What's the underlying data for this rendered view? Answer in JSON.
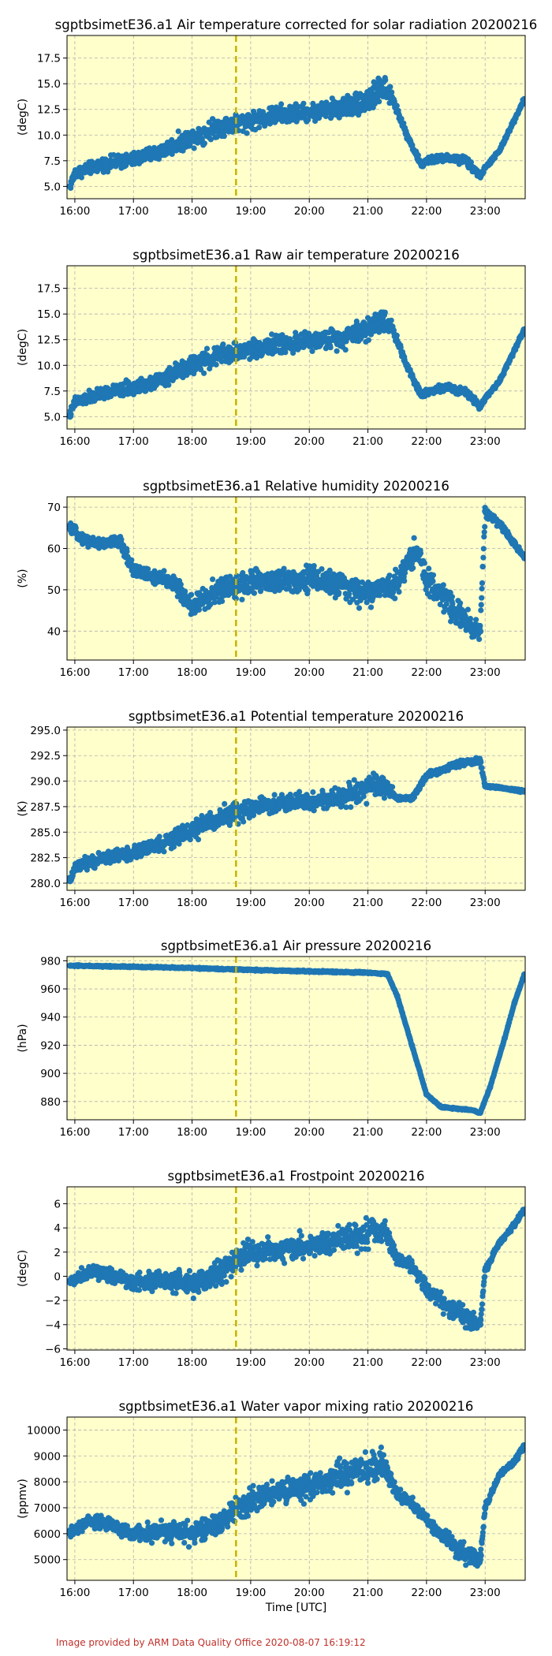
{
  "footer": "Image provided by ARM Data Quality Office 2020-08-07 16:19:12",
  "colors": {
    "series": "#1f77b4",
    "background": "#ffffcc",
    "marker_line": "#c8b400",
    "grid": "#b0b0b0"
  },
  "chart_data": [
    {
      "type": "scatter",
      "title": "sgptbsimetE36.a1 Air temperature corrected for solar radiation 20200216",
      "ylabel": "(degC)",
      "xlabel": "",
      "xlim": [
        "15:52",
        "23:41"
      ],
      "ylim": [
        3.8,
        19.7
      ],
      "xticks": [
        "16:00",
        "17:00",
        "18:00",
        "19:00",
        "20:00",
        "21:00",
        "22:00",
        "23:00"
      ],
      "yticks": [
        "5.0",
        "7.5",
        "10.0",
        "12.5",
        "15.0",
        "17.5"
      ],
      "marker_time": "18:45",
      "grid": true,
      "x": [
        "15:55",
        "16:00",
        "16:30",
        "17:00",
        "17:30",
        "18:00",
        "18:30",
        "19:00",
        "19:30",
        "20:00",
        "20:30",
        "21:00",
        "21:15",
        "21:25",
        "21:40",
        "21:55",
        "22:00",
        "22:20",
        "22:40",
        "22:55",
        "23:00",
        "23:15",
        "23:30",
        "23:40"
      ],
      "y": [
        5.0,
        6.3,
        7.2,
        7.6,
        8.5,
        9.8,
        10.9,
        11.4,
        12.0,
        12.2,
        12.6,
        13.4,
        14.5,
        13.6,
        10.0,
        7.0,
        7.5,
        7.8,
        7.5,
        6.0,
        6.8,
        8.5,
        11.5,
        13.5
      ],
      "spread": [
        0.6,
        0.8,
        0.9,
        1.0,
        1.1,
        1.3,
        1.4,
        1.3,
        1.3,
        1.2,
        1.4,
        1.8,
        2.0,
        0.8,
        0.5,
        0.4,
        0.5,
        0.5,
        0.7,
        0.4,
        0.3,
        0.3,
        0.3,
        0.3
      ]
    },
    {
      "type": "scatter",
      "title": "sgptbsimetE36.a1 Raw air temperature 20200216",
      "ylabel": "(degC)",
      "xlabel": "",
      "xlim": [
        "15:52",
        "23:41"
      ],
      "ylim": [
        3.8,
        19.7
      ],
      "xticks": [
        "16:00",
        "17:00",
        "18:00",
        "19:00",
        "20:00",
        "21:00",
        "22:00",
        "23:00"
      ],
      "yticks": [
        "5.0",
        "7.5",
        "10.0",
        "12.5",
        "15.0",
        "17.5"
      ],
      "marker_time": "18:45",
      "grid": true,
      "x": [
        "15:55",
        "16:00",
        "16:30",
        "17:00",
        "17:30",
        "18:00",
        "18:30",
        "19:00",
        "19:30",
        "20:00",
        "20:30",
        "21:00",
        "21:15",
        "21:25",
        "21:40",
        "21:55",
        "22:00",
        "22:20",
        "22:40",
        "22:55",
        "23:00",
        "23:15",
        "23:30",
        "23:40"
      ],
      "y": [
        5.2,
        6.4,
        7.3,
        7.8,
        8.7,
        10.0,
        11.0,
        11.6,
        12.1,
        12.3,
        12.7,
        13.6,
        14.6,
        13.6,
        10.0,
        7.0,
        7.5,
        7.8,
        7.5,
        6.0,
        6.8,
        8.5,
        11.5,
        13.5
      ],
      "spread": [
        0.6,
        0.8,
        0.9,
        1.0,
        1.1,
        1.3,
        1.4,
        1.3,
        1.3,
        1.2,
        1.4,
        1.8,
        2.0,
        0.8,
        0.5,
        0.4,
        0.5,
        0.5,
        0.7,
        0.4,
        0.3,
        0.3,
        0.3,
        0.3
      ]
    },
    {
      "type": "scatter",
      "title": "sgptbsimetE36.a1 Relative humidity 20200216",
      "ylabel": "(%)",
      "xlabel": "",
      "xlim": [
        "15:52",
        "23:41"
      ],
      "ylim": [
        33.0,
        72.5
      ],
      "xticks": [
        "16:00",
        "17:00",
        "18:00",
        "19:00",
        "20:00",
        "21:00",
        "22:00",
        "23:00"
      ],
      "yticks": [
        "40",
        "50",
        "60",
        "70"
      ],
      "marker_time": "18:45",
      "grid": true,
      "x": [
        "15:55",
        "16:10",
        "16:30",
        "16:45",
        "17:00",
        "17:20",
        "17:40",
        "18:00",
        "18:30",
        "19:00",
        "19:30",
        "20:00",
        "20:30",
        "21:00",
        "21:30",
        "21:50",
        "22:00",
        "22:20",
        "22:40",
        "22:55",
        "23:00",
        "23:15",
        "23:30",
        "23:40"
      ],
      "y": [
        65,
        62,
        61,
        62,
        55,
        53,
        52,
        46,
        50,
        52,
        52,
        53,
        51,
        49,
        52,
        60,
        52,
        48,
        42,
        40,
        69,
        66,
        61,
        58
      ],
      "spread": [
        1.5,
        2.0,
        2.0,
        2.0,
        2.5,
        2.5,
        3.0,
        4.0,
        4.5,
        4.5,
        4.5,
        4.5,
        4.5,
        4.5,
        4.0,
        5.0,
        4.0,
        5.0,
        5.0,
        4.0,
        2.0,
        1.5,
        1.0,
        1.0
      ]
    },
    {
      "type": "scatter",
      "title": "sgptbsimetE36.a1 Potential temperature 20200216",
      "ylabel": "(K)",
      "xlabel": "",
      "xlim": [
        "15:52",
        "23:41"
      ],
      "ylim": [
        279.3,
        295.3
      ],
      "xticks": [
        "16:00",
        "17:00",
        "18:00",
        "19:00",
        "20:00",
        "21:00",
        "22:00",
        "23:00"
      ],
      "yticks": [
        "280.0",
        "282.5",
        "285.0",
        "287.5",
        "290.0",
        "292.5",
        "295.0"
      ],
      "marker_time": "18:45",
      "grid": true,
      "x": [
        "15:55",
        "16:00",
        "16:30",
        "17:00",
        "17:30",
        "18:00",
        "18:30",
        "19:00",
        "19:30",
        "20:00",
        "20:30",
        "21:00",
        "21:15",
        "21:30",
        "21:45",
        "22:00",
        "22:20",
        "22:40",
        "22:55",
        "23:00",
        "23:20",
        "23:40"
      ],
      "y": [
        280.2,
        281.5,
        282.5,
        283.0,
        283.8,
        285.2,
        286.5,
        287.3,
        287.8,
        288.0,
        288.4,
        289.2,
        289.8,
        288.3,
        288.3,
        290.5,
        291.3,
        291.8,
        292.0,
        289.5,
        289.3,
        289.0
      ],
      "spread": [
        0.6,
        0.8,
        0.9,
        1.0,
        1.1,
        1.3,
        1.4,
        1.3,
        1.3,
        1.2,
        1.4,
        1.8,
        2.0,
        0.3,
        0.3,
        0.5,
        0.4,
        0.5,
        0.4,
        0.2,
        0.2,
        0.2
      ]
    },
    {
      "type": "scatter",
      "title": "sgptbsimetE36.a1 Air pressure 20200216",
      "ylabel": "(hPa)",
      "xlabel": "",
      "xlim": [
        "15:52",
        "23:41"
      ],
      "ylim": [
        867.0,
        983.0
      ],
      "xticks": [
        "16:00",
        "17:00",
        "18:00",
        "19:00",
        "20:00",
        "21:00",
        "22:00",
        "23:00"
      ],
      "yticks": [
        "880",
        "900",
        "920",
        "940",
        "960",
        "980"
      ],
      "marker_time": "18:45",
      "grid": true,
      "x": [
        "15:55",
        "17:00",
        "18:00",
        "19:00",
        "20:00",
        "21:00",
        "21:20",
        "21:30",
        "21:45",
        "22:00",
        "22:15",
        "22:30",
        "22:45",
        "22:55",
        "23:05",
        "23:20",
        "23:30",
        "23:40"
      ],
      "y": [
        976.5,
        975.8,
        974.8,
        973.5,
        972.5,
        971.5,
        970.5,
        955.0,
        920.0,
        885.0,
        876.0,
        875.0,
        874.0,
        872.0,
        890.0,
        925.0,
        950.0,
        970.0
      ],
      "spread": [
        0.8,
        0.8,
        0.8,
        0.8,
        0.8,
        0.8,
        0.8,
        0.8,
        0.8,
        0.8,
        0.8,
        0.8,
        0.8,
        0.8,
        0.8,
        0.8,
        0.8,
        0.8
      ]
    },
    {
      "type": "scatter",
      "title": "sgptbsimetE36.a1 Frostpoint 20200216",
      "ylabel": "(degC)",
      "xlabel": "",
      "xlim": [
        "15:52",
        "23:41"
      ],
      "ylim": [
        -6.1,
        7.4
      ],
      "xticks": [
        "16:00",
        "17:00",
        "18:00",
        "19:00",
        "20:00",
        "21:00",
        "22:00",
        "23:00"
      ],
      "yticks": [
        "−6",
        "−4",
        "−2",
        "0",
        "2",
        "4",
        "6"
      ],
      "marker_time": "18:45",
      "grid": true,
      "x": [
        "15:55",
        "16:15",
        "16:30",
        "17:00",
        "17:30",
        "18:00",
        "18:30",
        "19:00",
        "19:30",
        "20:00",
        "20:30",
        "21:00",
        "21:15",
        "21:30",
        "21:45",
        "22:00",
        "22:20",
        "22:40",
        "22:55",
        "23:00",
        "23:15",
        "23:30",
        "23:40"
      ],
      "y": [
        -0.5,
        0.5,
        0.3,
        -0.5,
        -0.3,
        -0.8,
        0.5,
        2.0,
        2.2,
        2.5,
        3.0,
        3.5,
        4.0,
        1.5,
        0.8,
        -1.0,
        -2.5,
        -3.5,
        -4.0,
        0.5,
        2.8,
        4.3,
        5.5
      ],
      "spread": [
        0.7,
        0.8,
        0.9,
        1.0,
        1.1,
        1.4,
        1.6,
        1.5,
        1.4,
        1.4,
        1.6,
        1.8,
        1.8,
        0.8,
        0.7,
        0.9,
        1.1,
        1.3,
        0.8,
        0.4,
        0.3,
        0.3,
        0.3
      ]
    },
    {
      "type": "scatter",
      "title": "sgptbsimetE36.a1 Water vapor mixing ratio 20200216",
      "ylabel": "(ppmv)",
      "xlabel": "Time [UTC]",
      "xlim": [
        "15:52",
        "23:41"
      ],
      "ylim": [
        4200,
        10500
      ],
      "xticks": [
        "16:00",
        "17:00",
        "18:00",
        "19:00",
        "20:00",
        "21:00",
        "22:00",
        "23:00"
      ],
      "yticks": [
        "5000",
        "6000",
        "7000",
        "8000",
        "9000",
        "10000"
      ],
      "marker_time": "18:45",
      "grid": true,
      "x": [
        "15:55",
        "16:15",
        "16:30",
        "17:00",
        "17:30",
        "18:00",
        "18:30",
        "19:00",
        "19:30",
        "20:00",
        "20:30",
        "21:00",
        "21:15",
        "21:30",
        "21:45",
        "22:00",
        "22:20",
        "22:40",
        "22:55",
        "23:00",
        "23:15",
        "23:30",
        "23:40"
      ],
      "y": [
        6000,
        6500,
        6400,
        6000,
        6100,
        6000,
        6500,
        7300,
        7600,
        7800,
        8200,
        8500,
        8700,
        7500,
        7200,
        6500,
        5800,
        5200,
        5000,
        7000,
        8300,
        8800,
        9400
      ],
      "spread": [
        300,
        350,
        400,
        450,
        500,
        600,
        800,
        700,
        700,
        700,
        800,
        900,
        900,
        400,
        350,
        350,
        450,
        550,
        350,
        200,
        150,
        150,
        150
      ]
    }
  ]
}
